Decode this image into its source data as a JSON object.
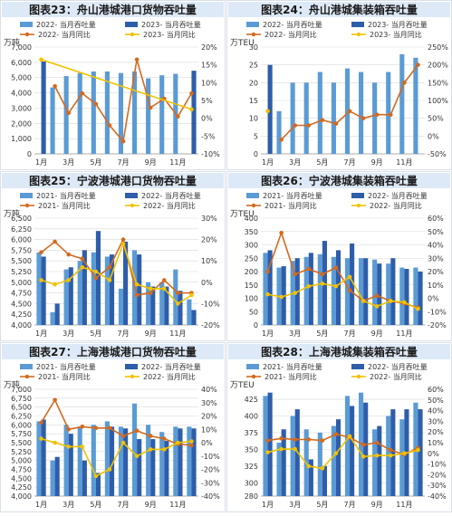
{
  "colors": {
    "bar_light": "#5b9bd5",
    "bar_dark": "#2e5daa",
    "line_orange": "#d46a1e",
    "line_yellow": "#f2c200",
    "grid": "#d9d9d9",
    "title_bg": "#dde9f6",
    "text": "#333333"
  },
  "chart_data": [
    {
      "type": "bar",
      "title": "图表23：舟山港城港口货物吞吐量",
      "unit_left": "万吨",
      "unit_right": "",
      "categories": [
        "1月",
        "2月",
        "3月",
        "4月",
        "5月",
        "6月",
        "7月",
        "8月",
        "9月",
        "10月",
        "11月",
        "12月"
      ],
      "x_tick_labels": [
        "1月",
        "3月",
        "5月",
        "7月",
        "9月",
        "11月"
      ],
      "ylim_left": [
        0,
        7000
      ],
      "yticks_left": [
        0,
        1000,
        2000,
        3000,
        4000,
        5000,
        6000,
        7000
      ],
      "ylim_right": [
        -10,
        20
      ],
      "yticks_right": [
        -10,
        -5,
        0,
        5,
        10,
        15,
        20
      ],
      "right_suffix": "%",
      "bar_series": [
        {
          "name": "2022- 当月吞吐量",
          "color": "#5b9bd5",
          "values": [
            null,
            4350,
            5100,
            5300,
            5400,
            5400,
            5300,
            5400,
            4950,
            5150,
            5250,
            null
          ]
        },
        {
          "name": "2023- 当月吞吐量",
          "color": "#2e5daa",
          "values": [
            6050,
            null,
            null,
            null,
            null,
            null,
            null,
            null,
            null,
            null,
            null,
            5450
          ]
        }
      ],
      "line_series": [
        {
          "name": "2022- 当月同比",
          "color": "#d46a1e",
          "values": [
            null,
            9.0,
            1.5,
            7.0,
            4.0,
            -2.0,
            -6.5,
            16.5,
            3.0,
            5.5,
            0.5,
            7.0
          ]
        },
        {
          "name": "2023- 当月同比",
          "color": "#f2c200",
          "values": [
            16.5,
            null,
            null,
            null,
            null,
            null,
            null,
            null,
            null,
            null,
            null,
            2.5
          ]
        }
      ],
      "legend": [
        "2022- 当月吞吐量",
        "2023- 当月吞吐量",
        "2022- 当月同比",
        "2023- 当月同比"
      ]
    },
    {
      "type": "bar",
      "title": "图表24：舟山港城集装箱吞吐量",
      "unit_left": "万TEU",
      "unit_right": "",
      "categories": [
        "1月",
        "2月",
        "3月",
        "4月",
        "5月",
        "6月",
        "7月",
        "8月",
        "9月",
        "10月",
        "11月",
        "12月"
      ],
      "x_tick_labels": [
        "1月",
        "3月",
        "5月",
        "7月",
        "9月",
        "11月"
      ],
      "ylim_left": [
        0,
        30
      ],
      "yticks_left": [
        0,
        5,
        10,
        15,
        20,
        25,
        30
      ],
      "ylim_right": [
        -50,
        250
      ],
      "yticks_right": [
        -50,
        0,
        50,
        100,
        150,
        200,
        250
      ],
      "right_suffix": "%",
      "bar_series": [
        {
          "name": "2022- 当月吞吐量",
          "color": "#5b9bd5",
          "values": [
            null,
            12,
            20,
            20,
            23,
            20,
            24,
            23,
            20,
            23,
            28,
            27
          ]
        },
        {
          "name": "2023- 当月吞吐量",
          "color": "#2e5daa",
          "values": [
            25,
            null,
            null,
            null,
            null,
            null,
            null,
            null,
            null,
            null,
            null,
            null
          ]
        }
      ],
      "line_series": [
        {
          "name": "2022- 当月同比",
          "color": "#d46a1e",
          "values": [
            null,
            -10,
            30,
            30,
            45,
            35,
            70,
            50,
            60,
            60,
            150,
            200
          ]
        },
        {
          "name": "2023- 当月同比",
          "color": "#f2c200",
          "values": [
            70,
            null,
            null,
            null,
            null,
            null,
            null,
            null,
            null,
            null,
            null,
            null
          ]
        }
      ],
      "legend": [
        "2022- 当月吞吐量",
        "2023- 当月吞吐量",
        "2022- 当月同比",
        "2023- 当月同比"
      ]
    },
    {
      "type": "bar",
      "title": "图表25：宁波港城港口货物吞吐量",
      "unit_left": "万吨",
      "unit_right": "",
      "categories": [
        "1月",
        "2月",
        "3月",
        "4月",
        "5月",
        "6月",
        "7月",
        "8月",
        "9月",
        "10月",
        "11月",
        "12月"
      ],
      "x_tick_labels": [
        "1月",
        "3月",
        "5月",
        "7月",
        "9月",
        "11月"
      ],
      "ylim_left": [
        4000,
        6500
      ],
      "yticks_left": [
        4000,
        4250,
        4500,
        4750,
        5000,
        5250,
        5500,
        5750,
        6000,
        6250,
        6500
      ],
      "ylim_right": [
        -20,
        30
      ],
      "yticks_right": [
        -20,
        -10,
        0,
        10,
        20,
        30
      ],
      "right_suffix": "%",
      "bar_series": [
        {
          "name": "2021- 当月吞吐量",
          "color": "#5b9bd5",
          "values": [
            5700,
            4300,
            5300,
            5500,
            5700,
            5600,
            4850,
            5750,
            5000,
            5000,
            5300,
            4600
          ]
        },
        {
          "name": "2022- 当月吞吐量",
          "color": "#2e5daa",
          "values": [
            5600,
            4500,
            5350,
            5750,
            6200,
            5650,
            5950,
            5650,
            4900,
            4900,
            4800,
            4350
          ]
        }
      ],
      "line_series": [
        {
          "name": "2021- 当月同比",
          "color": "#d46a1e",
          "values": [
            14,
            19,
            13,
            11,
            2,
            7,
            20,
            -6,
            -5,
            1,
            -5,
            -5
          ]
        },
        {
          "name": "2022- 当月同比",
          "color": "#f2c200",
          "values": [
            1,
            -1,
            1,
            7,
            5,
            1,
            18,
            -1,
            -3,
            -3,
            -10,
            -6
          ]
        }
      ],
      "legend": [
        "2021- 当月吞吐量",
        "2022- 当月吞吐量",
        "2021- 当月同比",
        "2022- 当月同比"
      ]
    },
    {
      "type": "bar",
      "title": "图表26：宁波港城集装箱吞吐量",
      "unit_left": "万TEU",
      "unit_right": "",
      "categories": [
        "1月",
        "2月",
        "3月",
        "4月",
        "5月",
        "6月",
        "7月",
        "8月",
        "9月",
        "10月",
        "11月",
        "12月"
      ],
      "x_tick_labels": [
        "1月",
        "3月",
        "5月",
        "7月",
        "9月",
        "11月"
      ],
      "ylim_left": [
        0,
        400
      ],
      "yticks_left": [
        0,
        50,
        100,
        150,
        200,
        250,
        300,
        350,
        400
      ],
      "ylim_right": [
        -20,
        60
      ],
      "yticks_right": [
        -20,
        -10,
        0,
        10,
        20,
        30,
        40,
        50,
        60
      ],
      "right_suffix": "%",
      "bar_series": [
        {
          "name": "2021- 当月吞吐量",
          "color": "#5b9bd5",
          "values": [
            270,
            215,
            240,
            255,
            265,
            255,
            250,
            250,
            245,
            230,
            215,
            215
          ]
        },
        {
          "name": "2022- 当月吞吐量",
          "color": "#2e5daa",
          "values": [
            280,
            220,
            250,
            270,
            315,
            280,
            305,
            250,
            230,
            250,
            210,
            200
          ]
        }
      ],
      "line_series": [
        {
          "name": "2021- 当月同比",
          "color": "#d46a1e",
          "values": [
            20,
            49,
            18,
            22,
            18,
            23,
            6,
            -2,
            2,
            -2,
            -4,
            -7
          ]
        },
        {
          "name": "2022- 当月同比",
          "color": "#f2c200",
          "values": [
            3,
            1,
            4,
            9,
            11,
            9,
            16,
            -2,
            -6,
            -2,
            -3,
            -8
          ]
        }
      ],
      "legend": [
        "2021- 当月吞吐量",
        "2022- 当月吞吐量",
        "2021- 当月同比",
        "2022- 当月同比"
      ]
    },
    {
      "type": "bar",
      "title": "图表27：上海港城港口货物吞吐量",
      "unit_left": "万吨",
      "unit_right": "",
      "categories": [
        "1月",
        "2月",
        "3月",
        "4月",
        "5月",
        "6月",
        "7月",
        "8月",
        "9月",
        "10月",
        "11月",
        "12月"
      ],
      "x_tick_labels": [
        "1月",
        "3月",
        "5月",
        "7月",
        "9月",
        "11月"
      ],
      "ylim_left": [
        4000,
        7000
      ],
      "yticks_left": [
        4000,
        4250,
        4500,
        4750,
        5000,
        5250,
        5500,
        5750,
        6000,
        6250,
        6500,
        6750,
        7000
      ],
      "ylim_right": [
        -40,
        40
      ],
      "yticks_right": [
        -40,
        -30,
        -20,
        -10,
        0,
        10,
        20,
        30,
        40
      ],
      "right_suffix": "%",
      "bar_series": [
        {
          "name": "2021- 当月吞吐量",
          "color": "#5b9bd5",
          "values": [
            6100,
            5000,
            6000,
            5950,
            6000,
            6100,
            5950,
            6600,
            6000,
            5800,
            5950,
            5950
          ]
        },
        {
          "name": "2022- 当月吞吐量",
          "color": "#2e5daa",
          "values": [
            6150,
            5100,
            5750,
            5000,
            4650,
            5950,
            5900,
            5600,
            5600,
            5550,
            5900,
            5900
          ]
        }
      ],
      "line_series": [
        {
          "name": "2021- 当月同比",
          "color": "#d46a1e",
          "values": [
            15,
            32,
            10,
            12,
            11,
            11,
            5,
            9,
            5,
            3,
            -1,
            -2
          ]
        },
        {
          "name": "2022- 当月同比",
          "color": "#f2c200",
          "values": [
            3,
            0,
            -3,
            -3,
            -25,
            -20,
            0,
            -10,
            -5,
            -5,
            0,
            1
          ]
        }
      ],
      "legend": [
        "2021- 当月吞吐量",
        "2022- 当月吞吐量",
        "2021- 当月同比",
        "2022- 当月同比"
      ]
    },
    {
      "type": "bar",
      "title": "图表28：上海港城集装箱吞吐量",
      "unit_left": "万TEU",
      "unit_right": "",
      "categories": [
        "1月",
        "2月",
        "3月",
        "4月",
        "5月",
        "6月",
        "7月",
        "8月",
        "9月",
        "10月",
        "11月",
        "12月"
      ],
      "x_tick_labels": [
        "1月",
        "3月",
        "5月",
        "7月",
        "9月",
        "11月"
      ],
      "ylim_left": [
        280,
        440
      ],
      "yticks_left": [
        280,
        300,
        325,
        350,
        375,
        400,
        425
      ],
      "ylim_right": [
        -40,
        60
      ],
      "yticks_right": [
        -40,
        -30,
        -20,
        -10,
        0,
        10,
        20,
        30,
        40,
        50,
        60
      ],
      "right_suffix": "%",
      "bar_series": [
        {
          "name": "2021- 当月吞吐量",
          "color": "#5b9bd5",
          "values": [
            430,
            360,
            400,
            380,
            375,
            385,
            430,
            435,
            380,
            400,
            395,
            420
          ]
        },
        {
          "name": "2022- 当月吞吐量",
          "color": "#2e5daa",
          "values": [
            435,
            380,
            410,
            335,
            325,
            395,
            415,
            420,
            385,
            410,
            410,
            410
          ]
        }
      ],
      "line_series": [
        {
          "name": "2021- 当月同比",
          "color": "#d46a1e",
          "values": [
            12,
            14,
            13,
            13,
            12,
            18,
            15,
            8,
            10,
            3,
            -1,
            5
          ]
        },
        {
          "name": "2022- 当月同比",
          "color": "#f2c200",
          "values": [
            1,
            4,
            4,
            -12,
            -14,
            0,
            16,
            -3,
            -2,
            -2,
            0,
            3
          ]
        }
      ],
      "legend": [
        "2021- 当月吞吐量",
        "2022- 当月吞吐量",
        "2021- 当月同比",
        "2022- 当月同比"
      ]
    }
  ]
}
